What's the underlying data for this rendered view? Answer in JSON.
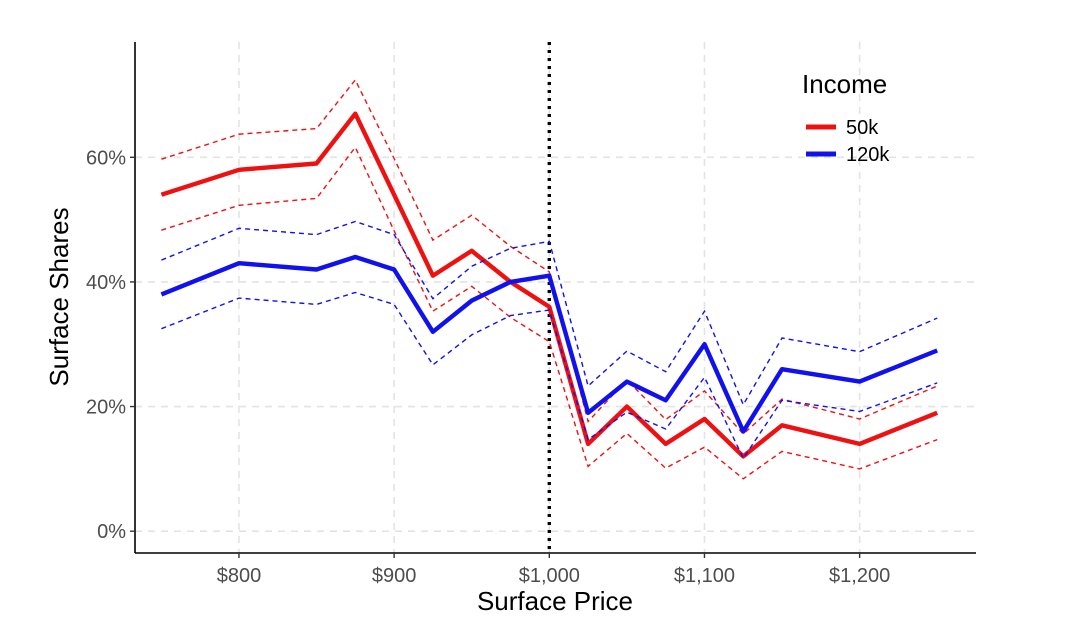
{
  "chart_data": {
    "type": "line",
    "xlabel": "Surface Price",
    "ylabel": "Surface Shares",
    "xlim": [
      733,
      1275
    ],
    "ylim": [
      -3.5,
      78.5
    ],
    "x_ticks": [
      800,
      900,
      1000,
      1100,
      1200
    ],
    "x_tick_labels": [
      "$800",
      "$900",
      "$1,000",
      "$1,100",
      "$1,200"
    ],
    "y_ticks": [
      0,
      20,
      40,
      60
    ],
    "y_tick_labels": [
      "0%",
      "20%",
      "40%",
      "60%"
    ],
    "grid": true,
    "vline": {
      "x": 1000,
      "style": "dotted",
      "color": "#000000"
    },
    "legend": {
      "title": "Income",
      "position": "top-right"
    },
    "x": [
      750,
      800,
      850,
      875,
      900,
      925,
      950,
      975,
      1000,
      1025,
      1050,
      1075,
      1100,
      1125,
      1150,
      1200,
      1250
    ],
    "series": [
      {
        "name": "50k",
        "color": "#ee1111",
        "values": [
          54,
          58,
          59,
          67,
          54,
          41,
          45,
          40,
          36,
          14,
          20,
          14,
          18,
          12,
          17,
          14,
          19
        ],
        "upper": [
          59.7,
          63.7,
          64.6,
          72.4,
          59.8,
          46.7,
          50.7,
          45.7,
          41.6,
          17.6,
          24.3,
          17.9,
          22.5,
          15.6,
          21.2,
          18.0,
          23.3
        ],
        "lower": [
          48.3,
          52.3,
          53.4,
          61.6,
          48.2,
          35.3,
          39.3,
          34.3,
          30.4,
          10.4,
          15.7,
          10.1,
          13.5,
          8.4,
          12.8,
          10.0,
          14.7
        ]
      },
      {
        "name": "120k",
        "color": "#1111ee",
        "values": [
          38,
          43,
          42,
          44,
          42,
          32,
          37,
          40,
          41,
          19,
          24,
          21,
          30,
          16,
          26,
          24,
          29
        ],
        "upper": [
          43.5,
          48.6,
          47.6,
          49.7,
          47.6,
          37.3,
          42.5,
          45.4,
          46.5,
          23.3,
          28.9,
          25.6,
          35.3,
          20.3,
          31.0,
          28.8,
          34.2
        ],
        "lower": [
          32.5,
          37.4,
          36.4,
          38.3,
          36.4,
          26.7,
          31.5,
          34.6,
          35.5,
          14.7,
          19.1,
          16.4,
          24.7,
          11.7,
          21.0,
          19.2,
          23.8
        ]
      }
    ]
  }
}
